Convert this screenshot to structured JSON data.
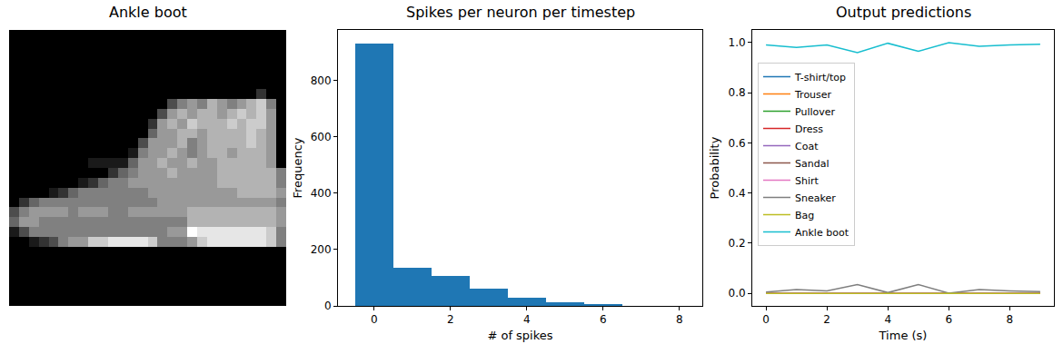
{
  "chart_data": [
    {
      "type": "image",
      "title": "Ankle boot",
      "tick_labels": false,
      "zlim": [
        0,
        1
      ],
      "cells": [
        [
          0,
          0,
          0,
          0,
          0,
          0,
          0,
          0,
          0,
          0,
          0,
          0,
          0,
          0,
          0,
          0,
          0,
          0,
          0,
          0,
          0,
          0,
          0,
          0,
          0,
          0,
          0,
          0
        ],
        [
          0,
          0,
          0,
          0,
          0,
          0,
          0,
          0,
          0,
          0,
          0,
          0,
          0,
          0,
          0,
          0,
          0,
          0,
          0,
          0,
          0,
          0,
          0,
          0,
          0,
          0,
          0,
          0
        ],
        [
          0,
          0,
          0,
          0,
          0,
          0,
          0,
          0,
          0,
          0,
          0,
          0,
          0,
          0,
          0,
          0,
          0,
          0,
          0,
          0,
          0,
          0,
          0,
          0,
          0,
          0,
          0,
          0
        ],
        [
          0,
          0,
          0,
          0,
          0,
          0,
          0,
          0,
          0,
          0,
          0,
          0,
          0,
          0,
          0,
          0,
          0,
          0,
          0,
          0,
          0,
          0,
          0,
          0,
          0,
          0,
          0,
          0
        ],
        [
          0,
          0,
          0,
          0,
          0,
          0,
          0,
          0,
          0,
          0,
          0,
          0,
          0,
          0,
          0,
          0,
          0,
          0,
          0,
          0,
          0,
          0,
          0,
          0,
          0,
          0,
          0,
          0
        ],
        [
          0,
          0,
          0,
          0,
          0,
          0,
          0,
          0,
          0,
          0,
          0,
          0,
          0,
          0,
          0,
          0,
          0,
          0,
          0,
          0,
          0,
          0,
          0,
          0,
          0,
          0,
          0,
          0
        ],
        [
          0,
          0,
          0,
          0,
          0,
          0,
          0,
          0,
          0,
          0,
          0,
          0,
          0,
          0,
          0,
          0,
          0,
          0,
          0,
          0,
          0,
          0,
          0,
          0,
          0,
          0.2,
          0,
          0
        ],
        [
          0,
          0,
          0,
          0,
          0,
          0,
          0,
          0,
          0,
          0,
          0,
          0,
          0,
          0,
          0,
          0,
          0.3,
          0.5,
          0.6,
          0.5,
          0.7,
          0.6,
          0.5,
          0.6,
          0.7,
          0.8,
          0.5,
          0
        ],
        [
          0,
          0,
          0,
          0,
          0,
          0,
          0,
          0,
          0,
          0,
          0,
          0,
          0,
          0,
          0,
          0.3,
          0.6,
          0.7,
          0.6,
          0.7,
          0.7,
          0.6,
          0.7,
          0.8,
          0.7,
          0.8,
          0.6,
          0
        ],
        [
          0,
          0,
          0,
          0,
          0,
          0,
          0,
          0,
          0,
          0,
          0,
          0,
          0,
          0,
          0.2,
          0.6,
          0.7,
          0.6,
          0.8,
          0.7,
          0.7,
          0.7,
          0.8,
          0.7,
          0.8,
          0.8,
          0.6,
          0
        ],
        [
          0,
          0,
          0,
          0,
          0,
          0,
          0,
          0,
          0,
          0,
          0,
          0,
          0,
          0,
          0.4,
          0.6,
          0.6,
          0.7,
          0.7,
          0.6,
          0.7,
          0.7,
          0.7,
          0.7,
          0.8,
          0.7,
          0.6,
          0
        ],
        [
          0,
          0,
          0,
          0,
          0,
          0,
          0,
          0,
          0,
          0,
          0,
          0,
          0,
          0.3,
          0.6,
          0.6,
          0.6,
          0.7,
          0.5,
          0.6,
          0.7,
          0.7,
          0.7,
          0.7,
          0.8,
          0.7,
          0.6,
          0
        ],
        [
          0,
          0,
          0,
          0,
          0,
          0,
          0,
          0,
          0,
          0,
          0,
          0,
          0.1,
          0.5,
          0.6,
          0.6,
          0.7,
          0.6,
          0.5,
          0.6,
          0.7,
          0.7,
          0.6,
          0.7,
          0.7,
          0.7,
          0.6,
          0
        ],
        [
          0,
          0,
          0,
          0,
          0,
          0,
          0,
          0,
          0.1,
          0.1,
          0.1,
          0.1,
          0.4,
          0.6,
          0.6,
          0.7,
          0.6,
          0.6,
          0.7,
          0.6,
          0.6,
          0.7,
          0.7,
          0.7,
          0.7,
          0.7,
          0.6,
          0
        ],
        [
          0,
          0,
          0,
          0,
          0,
          0,
          0,
          0,
          0,
          0,
          0.2,
          0.4,
          0.5,
          0.6,
          0.6,
          0.6,
          0.7,
          0.6,
          0.6,
          0.6,
          0.6,
          0.7,
          0.7,
          0.7,
          0.7,
          0.7,
          0.7,
          0.5
        ],
        [
          0,
          0,
          0,
          0,
          0,
          0,
          0,
          0.1,
          0.2,
          0.4,
          0.5,
          0.5,
          0.6,
          0.6,
          0.6,
          0.6,
          0.6,
          0.6,
          0.6,
          0.6,
          0.6,
          0.7,
          0.7,
          0.7,
          0.7,
          0.7,
          0.7,
          0.5
        ],
        [
          0,
          0,
          0,
          0,
          0.1,
          0.2,
          0.4,
          0.5,
          0.5,
          0.5,
          0.5,
          0.5,
          0.5,
          0.5,
          0.6,
          0.6,
          0.6,
          0.6,
          0.6,
          0.6,
          0.6,
          0.6,
          0.6,
          0.7,
          0.7,
          0.7,
          0.7,
          0.6
        ],
        [
          0,
          0.2,
          0.4,
          0.5,
          0.5,
          0.5,
          0.5,
          0.5,
          0.5,
          0.5,
          0.5,
          0.5,
          0.5,
          0.5,
          0.5,
          0.6,
          0.6,
          0.6,
          0.6,
          0.6,
          0.6,
          0.6,
          0.6,
          0.6,
          0.6,
          0.6,
          0.6,
          0.5
        ],
        [
          0.3,
          0.5,
          0.6,
          0.6,
          0.6,
          0.6,
          0.5,
          0.6,
          0.6,
          0.6,
          0.5,
          0.5,
          0.6,
          0.6,
          0.6,
          0.6,
          0.6,
          0.6,
          0.7,
          0.7,
          0.7,
          0.7,
          0.7,
          0.7,
          0.7,
          0.7,
          0.7,
          0.6
        ],
        [
          0.4,
          0.6,
          0.6,
          0.5,
          0.5,
          0.5,
          0.5,
          0.5,
          0.5,
          0.5,
          0.5,
          0.5,
          0.5,
          0.5,
          0.5,
          0.5,
          0.5,
          0.5,
          0.7,
          0.7,
          0.7,
          0.7,
          0.7,
          0.7,
          0.7,
          0.7,
          0.7,
          0.6
        ],
        [
          0.1,
          0.3,
          0.5,
          0.5,
          0.5,
          0.5,
          0.5,
          0.5,
          0.5,
          0.5,
          0.5,
          0.5,
          0.5,
          0.5,
          0.5,
          0.5,
          0.6,
          0.6,
          1.0,
          0.9,
          0.9,
          0.9,
          0.9,
          0.9,
          0.9,
          0.9,
          0.8,
          0.5
        ],
        [
          0,
          0,
          0.1,
          0.2,
          0.3,
          0.5,
          0.6,
          0.6,
          0.8,
          0.8,
          0.9,
          0.9,
          0.9,
          0.9,
          0.8,
          0.5,
          0.5,
          0.5,
          0.6,
          0.8,
          0.9,
          0.9,
          0.9,
          0.9,
          0.9,
          0.9,
          0.8,
          0.5
        ],
        [
          0,
          0,
          0,
          0,
          0,
          0,
          0,
          0,
          0,
          0,
          0,
          0,
          0,
          0,
          0,
          0,
          0,
          0,
          0,
          0,
          0,
          0,
          0,
          0,
          0,
          0,
          0,
          0
        ],
        [
          0,
          0,
          0,
          0,
          0,
          0,
          0,
          0,
          0,
          0,
          0,
          0,
          0,
          0,
          0,
          0,
          0,
          0,
          0,
          0,
          0,
          0,
          0,
          0,
          0,
          0,
          0,
          0
        ],
        [
          0,
          0,
          0,
          0,
          0,
          0,
          0,
          0,
          0,
          0,
          0,
          0,
          0,
          0,
          0,
          0,
          0,
          0,
          0,
          0,
          0,
          0,
          0,
          0,
          0,
          0,
          0,
          0
        ],
        [
          0,
          0,
          0,
          0,
          0,
          0,
          0,
          0,
          0,
          0,
          0,
          0,
          0,
          0,
          0,
          0,
          0,
          0,
          0,
          0,
          0,
          0,
          0,
          0,
          0,
          0,
          0,
          0
        ],
        [
          0,
          0,
          0,
          0,
          0,
          0,
          0,
          0,
          0,
          0,
          0,
          0,
          0,
          0,
          0,
          0,
          0,
          0,
          0,
          0,
          0,
          0,
          0,
          0,
          0,
          0,
          0,
          0
        ],
        [
          0,
          0,
          0,
          0,
          0,
          0,
          0,
          0,
          0,
          0,
          0,
          0,
          0,
          0,
          0,
          0,
          0,
          0,
          0,
          0,
          0,
          0,
          0,
          0,
          0,
          0,
          0,
          0
        ]
      ]
    },
    {
      "type": "histogram",
      "title": "Spikes per neuron per timestep",
      "x_label": "# of spikes",
      "y_label": "Frequency",
      "bins": [
        -0.5,
        0.5,
        1.5,
        2.5,
        3.5,
        4.5,
        5.5,
        6.5
      ],
      "counts": [
        932,
        135,
        106,
        61,
        29,
        13,
        6
      ],
      "color": "#1f77b4",
      "grid": false,
      "xlim": [
        -0.95,
        8.6
      ],
      "xticks": [
        0,
        2,
        4,
        6,
        8
      ],
      "ylim": [
        0,
        980
      ],
      "yticks": [
        0,
        200,
        400,
        600,
        800
      ]
    },
    {
      "type": "line",
      "title": "Output predictions",
      "x_label": "Time (s)",
      "y_label": "Probability",
      "x": [
        0,
        1,
        2,
        3,
        4,
        5,
        6,
        7,
        8,
        9
      ],
      "series": [
        {
          "name": "T-shirt/top",
          "color": "#1f77b4",
          "values": [
            0,
            0,
            0,
            0,
            0,
            0,
            0,
            0,
            0,
            0
          ]
        },
        {
          "name": "Trouser",
          "color": "#ff7f0e",
          "values": [
            0,
            0,
            0,
            0,
            0,
            0,
            0,
            0,
            0,
            0
          ]
        },
        {
          "name": "Pullover",
          "color": "#2ca02c",
          "values": [
            0,
            0,
            0,
            0,
            0,
            0,
            0,
            0,
            0,
            0
          ]
        },
        {
          "name": "Dress",
          "color": "#d62728",
          "values": [
            0,
            0,
            0,
            0,
            0,
            0,
            0,
            0,
            0,
            0
          ]
        },
        {
          "name": "Coat",
          "color": "#9467bd",
          "values": [
            0,
            0,
            0,
            0,
            0,
            0,
            0,
            0,
            0,
            0
          ]
        },
        {
          "name": "Sandal",
          "color": "#8c564b",
          "values": [
            0,
            0,
            0,
            0,
            0,
            0,
            0,
            0,
            0,
            0
          ]
        },
        {
          "name": "Shirt",
          "color": "#e377c2",
          "values": [
            0,
            0,
            0,
            0,
            0,
            0,
            0,
            0,
            0,
            0
          ]
        },
        {
          "name": "Sneaker",
          "color": "#7f7f7f",
          "values": [
            0.005,
            0.015,
            0.01,
            0.035,
            0.003,
            0.035,
            0.001,
            0.015,
            0.01,
            0.007
          ]
        },
        {
          "name": "Bag",
          "color": "#bcbd22",
          "values": [
            0,
            0,
            0,
            0,
            0,
            0,
            0,
            0,
            0,
            0
          ]
        },
        {
          "name": "Ankle boot",
          "color": "#17becf",
          "values": [
            0.99,
            0.98,
            0.99,
            0.96,
            0.997,
            0.965,
            0.999,
            0.985,
            0.99,
            0.993
          ]
        }
      ],
      "legend": "upper left",
      "grid": false,
      "xlim": [
        -0.45,
        9.45
      ],
      "xticks": [
        0,
        2,
        4,
        6,
        8
      ],
      "ylim": [
        -0.05,
        1.05
      ],
      "yticks": [
        {
          "value": 0,
          "label": "0.0"
        },
        {
          "value": 0.2,
          "label": "0.2"
        },
        {
          "value": 0.4,
          "label": "0.4"
        },
        {
          "value": 0.6,
          "label": "0.6"
        },
        {
          "value": 0.8,
          "label": "0.8"
        },
        {
          "value": 1,
          "label": "1.0"
        }
      ]
    }
  ]
}
